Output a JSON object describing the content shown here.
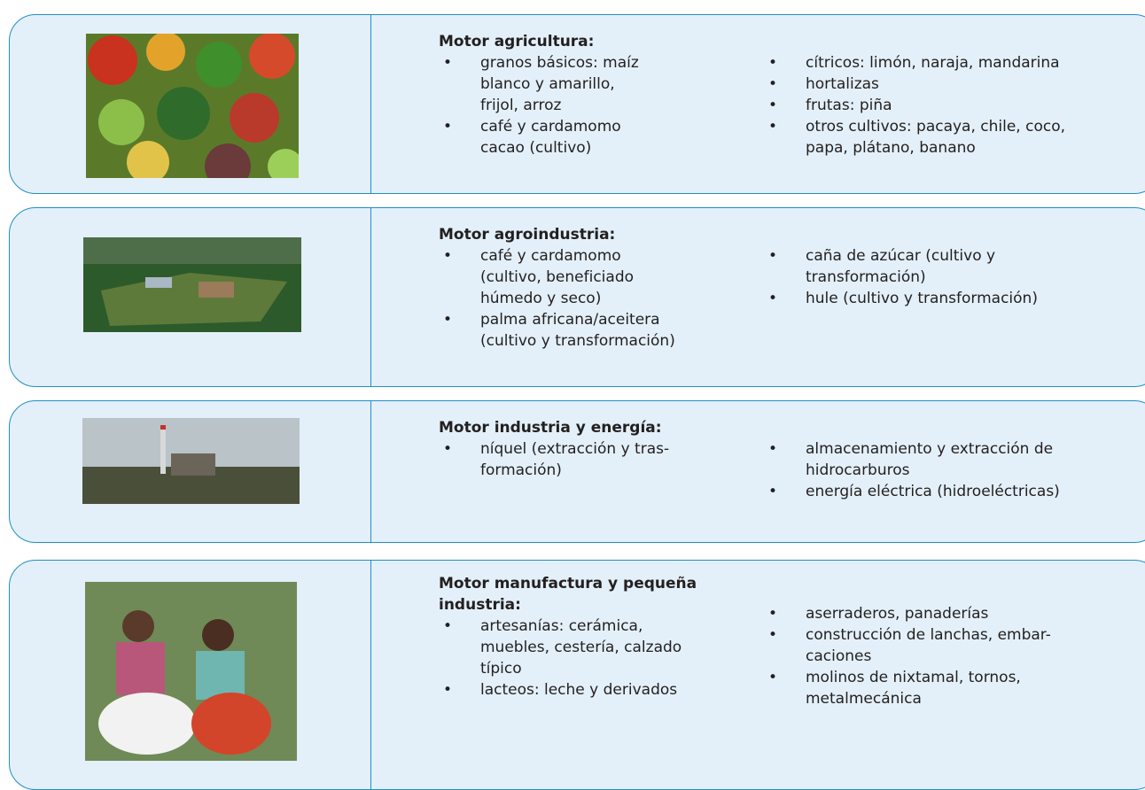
{
  "rows": [
    {
      "title": [
        "Motor agricultura:"
      ],
      "col1": [
        [
          "granos básicos: maíz",
          "blanco y amarillo,",
          "frijol, arroz"
        ],
        [
          "café y cardamomo",
          "cacao  (cultivo)"
        ]
      ],
      "col2": [
        [
          "cítricos: limón, naraja, mandarina"
        ],
        [
          "hortalizas"
        ],
        [
          "frutas: piña"
        ],
        [
          "otros cultivos: pacaya, chile, coco,",
          "papa, plátano, banano"
        ]
      ]
    },
    {
      "title": [
        "Motor agroindustria:"
      ],
      "col1": [
        [
          "café y cardamomo",
          "(cultivo, beneficiado",
          "húmedo y seco)"
        ],
        [
          "palma africana/aceitera",
          "(cultivo y transformación)"
        ]
      ],
      "col2": [
        [
          "caña de azúcar (cultivo y",
          "transformación)"
        ],
        [
          "hule (cultivo y transformación)"
        ]
      ]
    },
    {
      "title": [
        "Motor industria y energía:"
      ],
      "col1": [
        [
          "níquel (extracción y tras-",
          "formación)"
        ]
      ],
      "col2": [
        [
          "almacenamiento y extracción de",
          "hidrocarburos"
        ],
        [
          "energía eléctrica (hidroeléctricas)"
        ]
      ]
    },
    {
      "title": [
        "Motor manufactura y pequeña",
        "industria:"
      ],
      "col1": [
        [
          "artesanías: cerámica,",
          "muebles, cestería, calzado",
          "típico"
        ],
        [
          "lacteos: leche y derivados"
        ]
      ],
      "col2": [
        [
          "aserraderos, panaderías"
        ],
        [
          "construcción de lanchas, embar-",
          "caciones"
        ],
        [
          "molinos de nixtamal,  tornos,",
          "metalmecánica"
        ]
      ]
    }
  ]
}
